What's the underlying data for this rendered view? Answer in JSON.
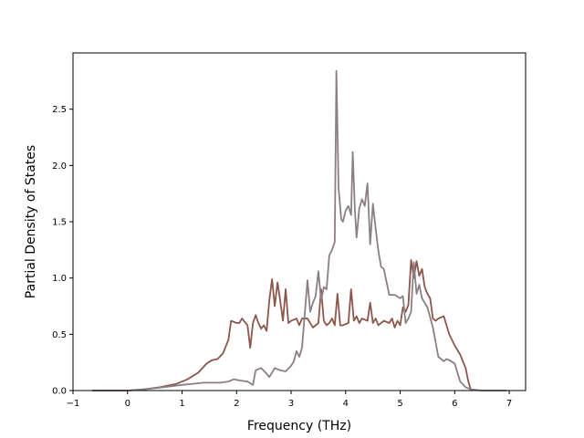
{
  "chart_data": {
    "type": "line",
    "title": "",
    "xlabel": "Frequency (THz)",
    "ylabel": "Partial Density of States",
    "xlim": [
      -1,
      7.3
    ],
    "ylim": [
      0,
      3.0
    ],
    "x_ticks": [
      -1,
      0,
      1,
      2,
      3,
      4,
      5,
      6,
      7
    ],
    "x_tick_labels": [
      "−1",
      "0",
      "1",
      "2",
      "3",
      "4",
      "5",
      "6",
      "7"
    ],
    "y_ticks": [
      0.0,
      0.5,
      1.0,
      1.5,
      2.0,
      2.5
    ],
    "y_tick_labels": [
      "0.0",
      "0.5",
      "1.0",
      "1.5",
      "2.0",
      "2.5"
    ],
    "grid": false,
    "legend": "none",
    "series": [
      {
        "color": "#8c564b",
        "x": [
          -0.65,
          -0.3,
          0.0,
          0.3,
          0.6,
          0.9,
          1.1,
          1.3,
          1.45,
          1.55,
          1.65,
          1.75,
          1.85,
          1.9,
          2.0,
          2.05,
          2.1,
          2.2,
          2.25,
          2.3,
          2.35,
          2.4,
          2.45,
          2.5,
          2.55,
          2.6,
          2.65,
          2.7,
          2.75,
          2.8,
          2.85,
          2.9,
          2.95,
          3.0,
          3.1,
          3.15,
          3.2,
          3.3,
          3.4,
          3.5,
          3.55,
          3.6,
          3.65,
          3.7,
          3.75,
          3.8,
          3.85,
          3.9,
          3.95,
          4.05,
          4.1,
          4.15,
          4.2,
          4.25,
          4.3,
          4.4,
          4.45,
          4.5,
          4.55,
          4.6,
          4.7,
          4.8,
          4.85,
          4.9,
          4.95,
          5.0,
          5.05,
          5.1,
          5.15,
          5.2,
          5.25,
          5.3,
          5.35,
          5.4,
          5.45,
          5.5,
          5.55,
          5.6,
          5.65,
          5.7,
          5.8,
          5.85,
          5.9,
          6.0,
          6.1,
          6.2,
          6.25,
          6.3
        ],
        "y": [
          0.0,
          0.0,
          0.0,
          0.01,
          0.03,
          0.06,
          0.1,
          0.16,
          0.24,
          0.27,
          0.28,
          0.33,
          0.45,
          0.62,
          0.6,
          0.6,
          0.64,
          0.58,
          0.38,
          0.6,
          0.67,
          0.6,
          0.55,
          0.58,
          0.53,
          0.8,
          0.99,
          0.75,
          0.96,
          0.8,
          0.62,
          0.9,
          0.6,
          0.62,
          0.64,
          0.58,
          0.64,
          0.64,
          0.56,
          0.6,
          0.9,
          0.62,
          0.58,
          0.6,
          0.64,
          0.58,
          0.86,
          0.58,
          0.58,
          0.6,
          0.9,
          0.62,
          0.66,
          0.6,
          0.64,
          0.62,
          0.78,
          0.6,
          0.64,
          0.58,
          0.62,
          0.6,
          0.64,
          0.56,
          0.62,
          0.58,
          0.74,
          0.7,
          0.76,
          1.16,
          1.0,
          1.15,
          1.02,
          1.08,
          0.92,
          0.86,
          0.82,
          0.64,
          0.62,
          0.64,
          0.66,
          0.58,
          0.5,
          0.4,
          0.32,
          0.2,
          0.08,
          0.0
        ]
      },
      {
        "color": "#8a7f85",
        "x": [
          -0.65,
          -0.3,
          0.0,
          0.5,
          1.0,
          1.4,
          1.7,
          1.85,
          1.95,
          2.05,
          2.2,
          2.3,
          2.35,
          2.45,
          2.55,
          2.6,
          2.7,
          2.75,
          2.8,
          2.9,
          3.0,
          3.05,
          3.1,
          3.15,
          3.2,
          3.3,
          3.35,
          3.4,
          3.45,
          3.5,
          3.55,
          3.6,
          3.65,
          3.7,
          3.75,
          3.8,
          3.83,
          3.87,
          3.92,
          3.95,
          4.0,
          4.05,
          4.1,
          4.13,
          4.17,
          4.2,
          4.25,
          4.3,
          4.35,
          4.4,
          4.45,
          4.5,
          4.55,
          4.6,
          4.65,
          4.7,
          4.8,
          4.9,
          5.0,
          5.05,
          5.1,
          5.15,
          5.2,
          5.25,
          5.3,
          5.35,
          5.4,
          5.5,
          5.6,
          5.7,
          5.8,
          5.85,
          5.9,
          6.0,
          6.1,
          6.2,
          6.3,
          6.5,
          6.95
        ],
        "y": [
          0.0,
          0.0,
          0.0,
          0.02,
          0.05,
          0.07,
          0.07,
          0.08,
          0.1,
          0.09,
          0.08,
          0.05,
          0.18,
          0.2,
          0.15,
          0.12,
          0.2,
          0.19,
          0.18,
          0.17,
          0.22,
          0.26,
          0.35,
          0.3,
          0.38,
          0.98,
          0.7,
          0.78,
          0.84,
          1.06,
          0.8,
          0.92,
          0.9,
          1.2,
          1.25,
          1.32,
          2.84,
          1.8,
          1.52,
          1.5,
          1.6,
          1.64,
          1.56,
          2.12,
          1.6,
          1.36,
          1.62,
          1.7,
          1.64,
          1.84,
          1.3,
          1.66,
          1.44,
          1.24,
          1.1,
          1.08,
          0.85,
          0.85,
          0.82,
          0.84,
          0.6,
          0.64,
          0.7,
          1.14,
          0.86,
          0.94,
          0.82,
          0.74,
          0.56,
          0.3,
          0.26,
          0.28,
          0.27,
          0.24,
          0.08,
          0.03,
          0.01,
          0.0,
          0.0
        ]
      }
    ]
  }
}
